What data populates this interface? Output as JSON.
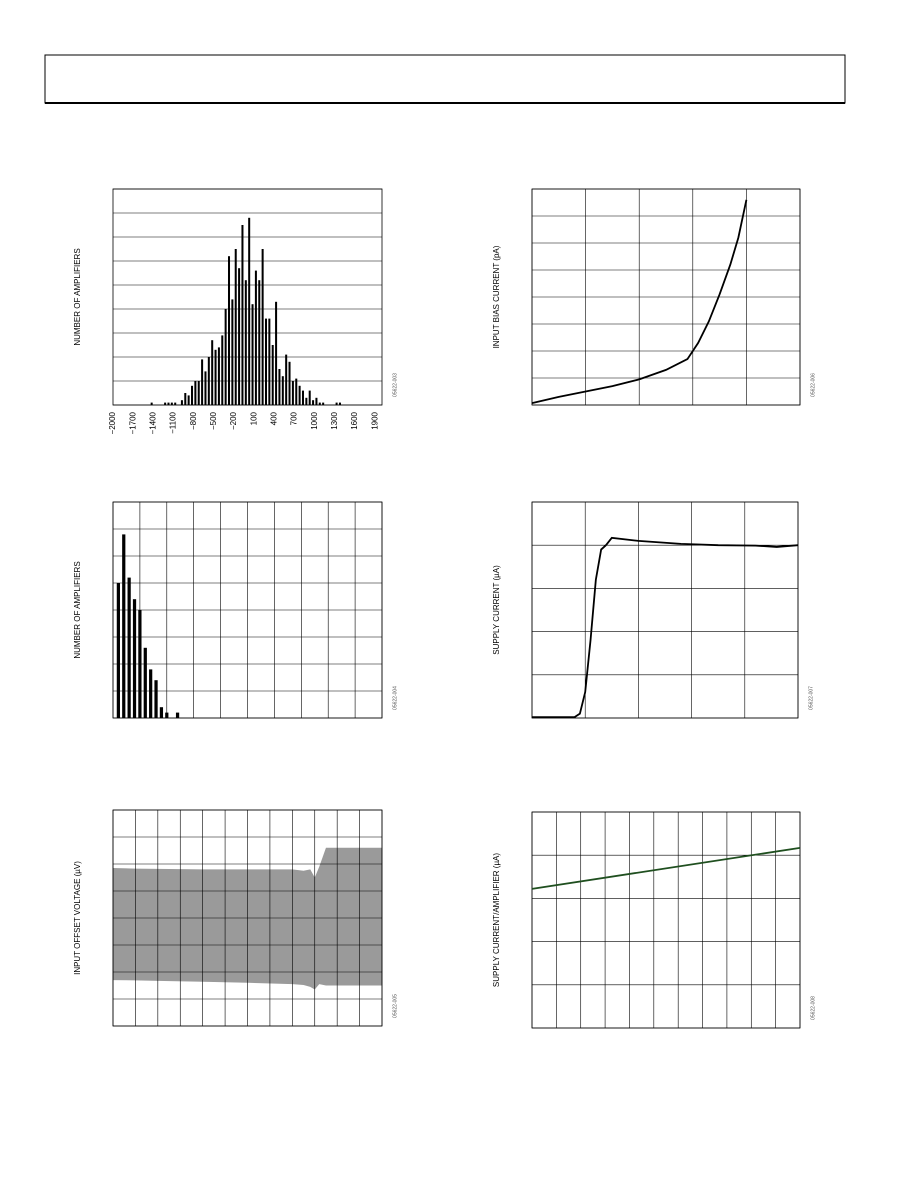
{
  "chart_data": [
    {
      "type": "histogram",
      "y_label": "NUMBER OF AMPLIFIERS",
      "figure_id": "05622-003",
      "color": "#000000",
      "bins": [
        -1450,
        -1400,
        -1350,
        -1300,
        -1250,
        -1200,
        -1150,
        -1100,
        -1050,
        -1000,
        -950,
        -900,
        -850,
        -800,
        -750,
        -700,
        -650,
        -600,
        -550,
        -500,
        -450,
        -400,
        -350,
        -300,
        -250,
        -200,
        -150,
        -100,
        -50,
        0,
        50,
        100,
        150,
        200,
        250,
        300,
        350,
        400,
        450,
        500,
        550,
        600,
        650,
        700,
        750,
        800,
        850,
        900,
        950,
        1000,
        1050,
        1100,
        1150,
        1200,
        1250,
        1300,
        1350,
        1400
      ],
      "values": [
        1,
        0,
        0,
        0,
        1,
        1,
        1,
        1,
        0,
        2,
        5,
        4,
        8,
        10,
        10,
        19,
        14,
        20,
        27,
        23,
        24,
        29,
        40,
        62,
        44,
        65,
        57,
        75,
        52,
        78,
        42,
        56,
        52,
        65,
        36,
        36,
        25,
        43,
        15,
        12,
        21,
        18,
        10,
        11,
        8,
        6,
        3,
        6,
        2,
        3,
        1,
        1,
        0,
        0,
        0,
        1,
        1
      ],
      "xlim": [
        -2000,
        2000
      ],
      "xticks": [
        {
          "value": -2000,
          "label": "−2000"
        },
        {
          "value": -1700,
          "label": "−1700"
        },
        {
          "value": -1400,
          "label": "−1400"
        },
        {
          "value": -1100,
          "label": "−1100"
        },
        {
          "value": -800,
          "label": "−800"
        },
        {
          "value": -500,
          "label": "−500"
        },
        {
          "value": -200,
          "label": "−200"
        },
        100,
        400,
        700,
        1000,
        1300,
        1600,
        1900
      ],
      "ylim": [
        0,
        90
      ],
      "yticks": [
        0,
        10,
        20,
        30,
        40,
        50,
        60,
        70,
        80,
        90
      ],
      "xgrid": false,
      "ygrid": true,
      "show_tick_labels": true
    },
    {
      "type": "line",
      "y_label": "INPUT BIAS CURRENT (pA)",
      "figure_id": "05622-006",
      "color": "#000000",
      "x": [
        0,
        0.5,
        1,
        1.5,
        2,
        2.5,
        2.9,
        3.1,
        3.3,
        3.5,
        3.7,
        3.85,
        4
      ],
      "values": [
        0.07,
        0.3,
        0.5,
        0.7,
        0.95,
        1.3,
        1.7,
        2.3,
        3.1,
        4.1,
        5.2,
        6.2,
        7.6
      ],
      "xlim": [
        0,
        5
      ],
      "xticks": [
        0,
        1,
        2,
        3,
        4,
        5
      ],
      "ylim": [
        0,
        8
      ],
      "yticks": [
        0,
        1,
        2,
        3,
        4,
        5,
        6,
        7,
        8
      ],
      "xgrid": true,
      "ygrid": true,
      "show_tick_labels": false
    },
    {
      "type": "histogram",
      "y_label": "NUMBER OF AMPLIFIERS",
      "figure_id": "05622-004",
      "color": "#000000",
      "bins": [
        0.1,
        0.3,
        0.5,
        0.7,
        0.9,
        1.1,
        1.3,
        1.5,
        1.7,
        1.9,
        2.1,
        2.3,
        2.5
      ],
      "values": [
        5.0,
        6.8,
        5.2,
        4.4,
        4.0,
        2.6,
        1.8,
        1.4,
        0.4,
        0.2,
        0,
        0.2
      ],
      "xlim": [
        0,
        10
      ],
      "xticks": [
        0,
        1,
        2,
        3,
        4,
        5,
        6,
        7,
        8,
        9,
        10
      ],
      "ylim": [
        0,
        8
      ],
      "yticks": [
        0,
        1,
        2,
        3,
        4,
        5,
        6,
        7,
        8
      ],
      "xgrid": true,
      "ygrid": true,
      "show_tick_labels": false
    },
    {
      "type": "line",
      "y_label": "SUPPLY CURRENT (µA)",
      "figure_id": "05622-007",
      "color": "#000000",
      "x": [
        0,
        0.8,
        0.9,
        1.0,
        1.1,
        1.2,
        1.3,
        1.39,
        1.5,
        2,
        2.8,
        3.5,
        4.2,
        4.6,
        5
      ],
      "values": [
        0.02,
        0.02,
        0.1,
        0.6,
        1.8,
        3.2,
        3.9,
        4.0,
        4.17,
        4.1,
        4.03,
        4.0,
        3.99,
        3.96,
        4.0
      ],
      "xlim": [
        0,
        5
      ],
      "xticks": [
        0,
        1,
        2,
        3,
        4,
        5
      ],
      "ylim": [
        0,
        5
      ],
      "yticks": [
        0,
        1,
        2,
        3,
        4,
        5
      ],
      "xgrid": true,
      "ygrid": true,
      "show_tick_labels": false
    },
    {
      "type": "area",
      "y_label": "INPUT OFFSET VOLTAGE (µV)",
      "figure_id": "05622-005",
      "x": [
        0,
        1,
        2,
        4,
        6,
        8,
        8.5,
        8.8,
        9.0,
        9.2,
        9.5,
        10,
        12
      ],
      "series": [
        {
          "color": "#9a9a9a",
          "values": [
            5.85,
            5.83,
            5.82,
            5.8,
            5.8,
            5.8,
            5.75,
            5.8,
            5.5,
            5.9,
            6.6,
            6.6,
            6.6
          ]
        },
        {
          "color": "#9a9a9a",
          "values": [
            1.7,
            1.69,
            1.67,
            1.64,
            1.6,
            1.55,
            1.52,
            1.45,
            1.35,
            1.55,
            1.5,
            1.5,
            1.5
          ]
        }
      ],
      "xlim": [
        0,
        12
      ],
      "xticks": [
        0,
        1,
        2,
        3,
        4,
        5,
        6,
        7,
        8,
        9,
        10,
        11,
        12
      ],
      "ylim": [
        0,
        8
      ],
      "yticks": [
        0,
        1,
        2,
        3,
        4,
        5,
        6,
        7,
        8
      ],
      "xgrid": true,
      "ygrid": true,
      "show_tick_labels": false
    },
    {
      "type": "line",
      "y_label": "SUPPLY CURRENT/AMPLIFIER (µA)",
      "figure_id": "05622-008",
      "color": "#1f4f1f",
      "x": [
        0,
        11
      ],
      "values": [
        3.22,
        4.17
      ],
      "xlim": [
        0,
        11
      ],
      "xticks": [
        0,
        1,
        2,
        3,
        4,
        5,
        6,
        7,
        8,
        9,
        10,
        11
      ],
      "ylim": [
        0,
        5
      ],
      "yticks": [
        0,
        1,
        2,
        3,
        4,
        5
      ],
      "xgrid": true,
      "ygrid": true,
      "show_tick_labels": false
    }
  ]
}
